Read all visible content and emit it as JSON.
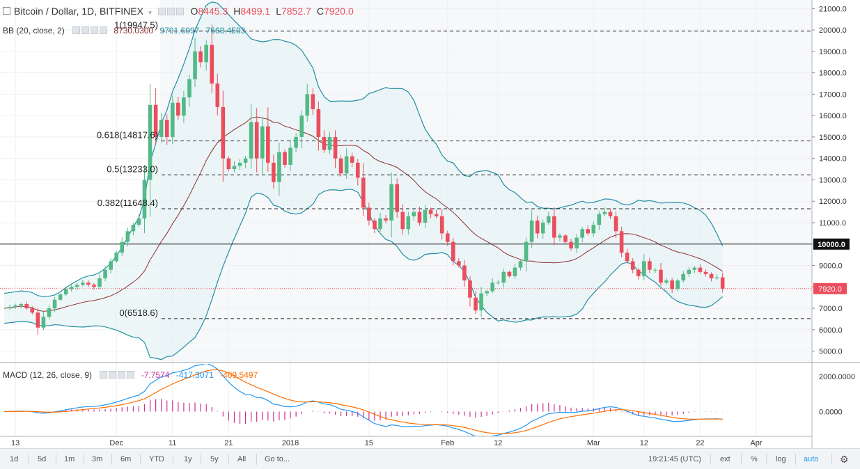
{
  "header": {
    "symbol_title": "Bitcoin / Dollar, 1D, BITFINEX",
    "ohlc": [
      {
        "label": "O",
        "value": "8445.3"
      },
      {
        "label": "H",
        "value": "8499.1"
      },
      {
        "label": "L",
        "value": "7852.7"
      },
      {
        "label": "C",
        "value": "7920.0"
      }
    ],
    "bb_label": "BB (20, close, 2)",
    "bb_values": [
      "8730.0300",
      "9791.6097",
      "7668.4503"
    ],
    "macd_label": "MACD (12, 26, close, 9)",
    "macd_values": [
      "-7.7574",
      "-417.3071",
      "-409.5497"
    ]
  },
  "chart_data": {
    "type": "candlestick",
    "price_axis": {
      "ylim": [
        4500,
        21400
      ],
      "ticks": [
        5000,
        6000,
        7000,
        8000,
        9000,
        10000,
        11000,
        12000,
        13000,
        14000,
        15000,
        16000,
        17000,
        18000,
        19000,
        20000,
        21000
      ],
      "tick_labels": [
        "5000.0",
        "6000.0",
        "7000.0",
        "8000.0",
        "9000.0",
        "10000.0",
        "11000.0",
        "12000.0",
        "13000.0",
        "14000.0",
        "15000.0",
        "16000.0",
        "17000.0",
        "18000.0",
        "19000.0",
        "20000.0",
        "21000.0"
      ],
      "last_price": 7920.0,
      "last_price_label": "7920.0",
      "horizontal_line": 10000.0,
      "horizontal_line_label": "10000.0"
    },
    "x_axis": {
      "labels": [
        "13",
        "Dec",
        "11",
        "21",
        "2018",
        "15",
        "Feb",
        "12",
        "Mar",
        "12",
        "22",
        "Apr"
      ],
      "label_day_index": [
        2,
        20,
        30,
        40,
        51,
        65,
        79,
        88,
        105,
        114,
        124,
        134
      ],
      "bars": 135
    },
    "fibonacci": [
      {
        "label": "1(19947.5)",
        "value": 19947.5
      },
      {
        "label": "0.618(14817.6)",
        "value": 14817.6
      },
      {
        "label": "0.5(13233.0)",
        "value": 13233.0
      },
      {
        "label": "0.382(11648.4)",
        "value": 11648.4
      },
      {
        "label": "0(6518.6)",
        "value": 6518.6
      }
    ],
    "close_anchors": [
      [
        0,
        7000
      ],
      [
        3,
        7200
      ],
      [
        5,
        6800
      ],
      [
        6,
        6100
      ],
      [
        7,
        6600
      ],
      [
        9,
        7400
      ],
      [
        11,
        7900
      ],
      [
        14,
        8200
      ],
      [
        16,
        8000
      ],
      [
        18,
        8800
      ],
      [
        20,
        9600
      ],
      [
        22,
        10600
      ],
      [
        24,
        11200
      ],
      [
        25,
        13000
      ],
      [
        26,
        16500
      ],
      [
        27,
        15000
      ],
      [
        28,
        15800
      ],
      [
        29,
        15000
      ],
      [
        30,
        16600
      ],
      [
        31,
        16000
      ],
      [
        33,
        17700
      ],
      [
        34,
        19000
      ],
      [
        35,
        18500
      ],
      [
        36,
        19300
      ],
      [
        37,
        17500
      ],
      [
        38,
        16400
      ],
      [
        39,
        14000
      ],
      [
        40,
        13500
      ],
      [
        42,
        13800
      ],
      [
        43,
        14000
      ],
      [
        44,
        15700
      ],
      [
        45,
        14000
      ],
      [
        46,
        15500
      ],
      [
        47,
        13800
      ],
      [
        48,
        12900
      ],
      [
        49,
        14300
      ],
      [
        50,
        13700
      ],
      [
        51,
        14500
      ],
      [
        52,
        15000
      ],
      [
        54,
        17000
      ],
      [
        55,
        16300
      ],
      [
        56,
        15000
      ],
      [
        57,
        14400
      ],
      [
        58,
        15000
      ],
      [
        59,
        14000
      ],
      [
        60,
        13300
      ],
      [
        61,
        14100
      ],
      [
        62,
        13800
      ],
      [
        63,
        13100
      ],
      [
        64,
        11700
      ],
      [
        65,
        11100
      ],
      [
        66,
        10700
      ],
      [
        67,
        11200
      ],
      [
        68,
        11100
      ],
      [
        69,
        12800
      ],
      [
        70,
        11500
      ],
      [
        71,
        10700
      ],
      [
        72,
        11300
      ],
      [
        73,
        11500
      ],
      [
        74,
        11000
      ],
      [
        75,
        11600
      ],
      [
        76,
        11400
      ],
      [
        77,
        11300
      ],
      [
        78,
        10500
      ],
      [
        79,
        10100
      ],
      [
        80,
        9200
      ],
      [
        81,
        9000
      ],
      [
        82,
        8300
      ],
      [
        83,
        7500
      ],
      [
        84,
        6900
      ],
      [
        85,
        7700
      ],
      [
        86,
        7800
      ],
      [
        87,
        8200
      ],
      [
        88,
        8200
      ],
      [
        89,
        8700
      ],
      [
        90,
        8500
      ],
      [
        91,
        8900
      ],
      [
        92,
        9200
      ],
      [
        93,
        10100
      ],
      [
        94,
        11100
      ],
      [
        95,
        10500
      ],
      [
        96,
        11000
      ],
      [
        97,
        11300
      ],
      [
        98,
        10300
      ],
      [
        99,
        10400
      ],
      [
        100,
        10100
      ],
      [
        101,
        9800
      ],
      [
        102,
        10300
      ],
      [
        103,
        10700
      ],
      [
        104,
        10500
      ],
      [
        105,
        10900
      ],
      [
        106,
        11400
      ],
      [
        107,
        11500
      ],
      [
        108,
        11300
      ],
      [
        109,
        10600
      ],
      [
        110,
        9600
      ],
      [
        111,
        9200
      ],
      [
        112,
        8800
      ],
      [
        113,
        8500
      ],
      [
        114,
        9200
      ],
      [
        115,
        8800
      ],
      [
        116,
        8800
      ],
      [
        117,
        8200
      ],
      [
        118,
        8300
      ],
      [
        119,
        7900
      ],
      [
        120,
        8300
      ],
      [
        121,
        8600
      ],
      [
        122,
        8800
      ],
      [
        123,
        8900
      ],
      [
        124,
        8700
      ],
      [
        125,
        8600
      ],
      [
        126,
        8400
      ],
      [
        127,
        8445
      ]
    ],
    "bollinger_period": 20,
    "bollinger_mult": 2,
    "macd_axis": {
      "ylim": [
        -1400,
        2700
      ],
      "ticks": [
        0,
        2000
      ],
      "tick_labels": [
        "0.0000",
        "2000.0000"
      ]
    }
  },
  "toolbar": {
    "ranges": [
      "1d",
      "5d",
      "1m",
      "3m",
      "6m",
      "YTD",
      "1y",
      "5y",
      "All"
    ],
    "goto_label": "Go to...",
    "clock": "19:21:45 (UTC)",
    "ext_label": "ext",
    "percent_label": "%",
    "log_label": "log",
    "auto_label": "auto",
    "settings_icon": "gear-icon"
  },
  "colors": {
    "up": "#53b987",
    "down": "#eb4d5c",
    "band": "#1f8ea3",
    "basis": "#8b2f2f",
    "macd": "#2196f3",
    "signal": "#ff6d00",
    "hist_pos": "#cc2f8f",
    "accent": "#2196f3"
  }
}
